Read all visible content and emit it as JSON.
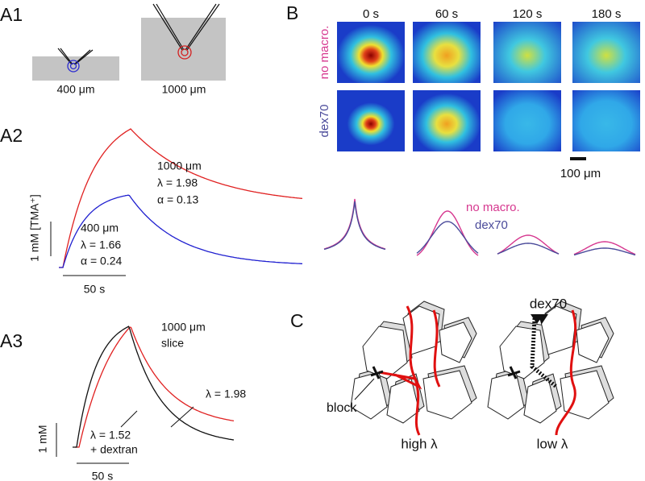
{
  "a1": {
    "label": "A1",
    "left_scale": "400 μm",
    "right_scale": "1000 μm"
  },
  "a2": {
    "label": "A2",
    "deep": {
      "depth": "1000 μm",
      "lambda": "λ = 1.98",
      "alpha": "α = 0.13"
    },
    "shallow": {
      "depth": "400 μm",
      "lambda": "λ = 1.66",
      "alpha": "α = 0.24"
    },
    "y_scale": "1 mM [TMA⁺]",
    "x_scale": "50 s"
  },
  "a3": {
    "label": "A3",
    "depth": "1000 μm",
    "prep": "slice",
    "control_lambda": "λ = 1.98",
    "dextran_lambda": "λ = 1.52",
    "dextran": "+ dextran",
    "y_scale": "1 mM",
    "x_scale": "50 s"
  },
  "b": {
    "label": "B",
    "times": [
      "0 s",
      "60 s",
      "120 s",
      "180 s"
    ],
    "rows": [
      "no macro.",
      "dex70"
    ],
    "scale": "100 μm",
    "legend": [
      "no macro.",
      "dex70"
    ]
  },
  "c": {
    "label": "C",
    "dex": "dex70",
    "block": "block",
    "high": "high λ",
    "low": "low λ"
  }
}
